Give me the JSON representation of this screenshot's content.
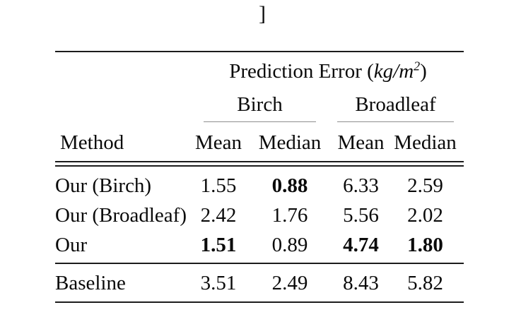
{
  "page": {
    "background": "#ffffff",
    "stray_caption_fragment": "]"
  },
  "table": {
    "title": {
      "prefix": "Prediction Error (",
      "unit_italic": "kg/m",
      "superscript": "2",
      "suffix": ")"
    },
    "groups": [
      {
        "label": "Birch"
      },
      {
        "label": "Broadleaf"
      }
    ],
    "method_header": "Method",
    "sub_headers": [
      "Mean",
      "Median",
      "Mean",
      "Median"
    ],
    "rows": [
      {
        "method": "Our (Birch)",
        "values": [
          "1.55",
          "0.88",
          "6.33",
          "2.59"
        ],
        "bold": [
          false,
          true,
          false,
          false
        ]
      },
      {
        "method": "Our (Broadleaf)",
        "values": [
          "2.42",
          "1.76",
          "5.56",
          "2.02"
        ],
        "bold": [
          false,
          false,
          false,
          false
        ]
      },
      {
        "method": "Our",
        "values": [
          "1.51",
          "0.89",
          "4.74",
          "1.80"
        ],
        "bold": [
          true,
          false,
          true,
          true
        ]
      }
    ],
    "baseline_row": {
      "method": "Baseline",
      "values": [
        "3.51",
        "2.49",
        "8.43",
        "5.82"
      ],
      "bold": [
        false,
        false,
        false,
        false
      ]
    },
    "colors": {
      "rule": "#1c1c1c",
      "cmidrule": "#8f8f8f",
      "text": "#0a0a0a"
    }
  }
}
